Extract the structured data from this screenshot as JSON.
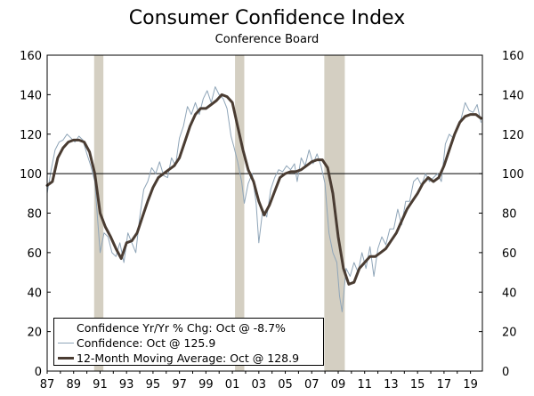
{
  "chart_data": {
    "type": "line",
    "title": "Consumer Confidence Index",
    "subtitle": "Conference Board",
    "ylim": [
      0,
      160
    ],
    "yticks": [
      0,
      20,
      40,
      60,
      80,
      100,
      120,
      140,
      160
    ],
    "xlim": [
      1987,
      2019.9
    ],
    "xtick_values": [
      1987,
      1989,
      1991,
      1993,
      1995,
      1997,
      1999,
      2001,
      2003,
      2005,
      2007,
      2009,
      2011,
      2013,
      2015,
      2017,
      2019
    ],
    "xtick_labels": [
      "87",
      "89",
      "91",
      "93",
      "95",
      "97",
      "99",
      "01",
      "03",
      "05",
      "07",
      "09",
      "11",
      "13",
      "15",
      "17",
      "19"
    ],
    "reference_line": 100,
    "recessions": [
      [
        1990.55,
        1991.25
      ],
      [
        2001.2,
        2001.9
      ],
      [
        2007.95,
        2009.5
      ]
    ],
    "legend": [
      "Confidence Yr/Yr % Chg: Oct @ -8.7%",
      "Confidence: Oct @ 125.9",
      "12-Month Moving Average: Oct @ 128.9"
    ],
    "series": [
      {
        "name": "Confidence",
        "color": "#8fa5b8",
        "x": [
          1987.0,
          1987.3,
          1987.6,
          1987.9,
          1988.2,
          1988.5,
          1988.8,
          1989.1,
          1989.4,
          1989.7,
          1990.0,
          1990.3,
          1990.6,
          1990.8,
          1991.0,
          1991.3,
          1991.6,
          1991.9,
          1992.2,
          1992.5,
          1992.8,
          1993.1,
          1993.4,
          1993.7,
          1994.0,
          1994.3,
          1994.6,
          1994.9,
          1995.2,
          1995.5,
          1995.8,
          1996.1,
          1996.4,
          1996.7,
          1997.0,
          1997.3,
          1997.6,
          1997.9,
          1998.2,
          1998.5,
          1998.8,
          1999.1,
          1999.4,
          1999.7,
          2000.0,
          2000.3,
          2000.6,
          2000.9,
          2001.1,
          2001.4,
          2001.7,
          2001.9,
          2002.2,
          2002.5,
          2002.8,
          2003.0,
          2003.3,
          2003.6,
          2003.9,
          2004.2,
          2004.5,
          2004.8,
          2005.1,
          2005.4,
          2005.7,
          2005.9,
          2006.2,
          2006.5,
          2006.8,
          2007.1,
          2007.4,
          2007.7,
          2008.0,
          2008.3,
          2008.6,
          2008.9,
          2009.1,
          2009.3,
          2009.6,
          2009.9,
          2010.2,
          2010.5,
          2010.8,
          2011.1,
          2011.4,
          2011.7,
          2012.0,
          2012.3,
          2012.6,
          2012.9,
          2013.2,
          2013.5,
          2013.8,
          2014.1,
          2014.4,
          2014.7,
          2015.0,
          2015.3,
          2015.6,
          2015.9,
          2016.2,
          2016.5,
          2016.8,
          2017.1,
          2017.4,
          2017.7,
          2018.0,
          2018.3,
          2018.6,
          2018.9,
          2019.2,
          2019.5,
          2019.8
        ],
        "values": [
          90,
          102,
          112,
          116,
          117,
          120,
          118,
          116,
          119,
          117,
          110,
          104,
          96,
          78,
          60,
          70,
          68,
          60,
          58,
          65,
          55,
          70,
          65,
          60,
          78,
          92,
          96,
          103,
          100,
          106,
          99,
          98,
          108,
          104,
          118,
          124,
          134,
          130,
          136,
          130,
          138,
          142,
          136,
          144,
          140,
          138,
          133,
          119,
          114,
          106,
          96,
          85,
          95,
          100,
          85,
          65,
          82,
          78,
          92,
          98,
          102,
          101,
          104,
          102,
          105,
          96,
          108,
          104,
          112,
          105,
          110,
          104,
          95,
          70,
          60,
          55,
          38,
          30,
          52,
          48,
          55,
          50,
          60,
          52,
          63,
          48,
          62,
          68,
          64,
          72,
          72,
          82,
          74,
          86,
          86,
          96,
          98,
          94,
          100,
          96,
          98,
          100,
          96,
          115,
          120,
          118,
          124,
          128,
          136,
          132,
          131,
          135,
          126
        ]
      },
      {
        "name": "12-Month Moving Average",
        "color": "#4a3c32",
        "x": [
          1987.0,
          1987.4,
          1987.8,
          1988.2,
          1988.6,
          1989.0,
          1989.4,
          1989.8,
          1990.2,
          1990.6,
          1991.0,
          1991.4,
          1991.8,
          1992.2,
          1992.6,
          1993.0,
          1993.4,
          1993.8,
          1994.2,
          1994.6,
          1995.0,
          1995.4,
          1995.8,
          1996.2,
          1996.6,
          1997.0,
          1997.4,
          1997.8,
          1998.2,
          1998.6,
          1999.0,
          1999.4,
          1999.8,
          2000.2,
          2000.6,
          2001.0,
          2001.4,
          2001.8,
          2002.2,
          2002.6,
          2003.0,
          2003.4,
          2003.8,
          2004.2,
          2004.6,
          2005.0,
          2005.4,
          2005.8,
          2006.2,
          2006.6,
          2007.0,
          2007.4,
          2007.8,
          2008.2,
          2008.6,
          2009.0,
          2009.4,
          2009.8,
          2010.2,
          2010.6,
          2011.0,
          2011.4,
          2011.8,
          2012.2,
          2012.6,
          2013.0,
          2013.4,
          2013.8,
          2014.2,
          2014.6,
          2015.0,
          2015.4,
          2015.8,
          2016.2,
          2016.6,
          2017.0,
          2017.4,
          2017.8,
          2018.2,
          2018.6,
          2019.0,
          2019.4,
          2019.8
        ],
        "values": [
          94,
          96,
          108,
          113,
          116,
          117,
          117,
          116,
          111,
          100,
          80,
          73,
          68,
          62,
          57,
          65,
          66,
          70,
          78,
          86,
          93,
          98,
          100,
          102,
          104,
          108,
          116,
          124,
          130,
          133,
          133,
          135,
          137,
          140,
          139,
          136,
          124,
          112,
          102,
          96,
          86,
          79,
          84,
          91,
          98,
          100,
          101,
          101,
          102,
          104,
          106,
          107,
          107,
          103,
          90,
          68,
          52,
          44,
          45,
          52,
          55,
          58,
          58,
          60,
          62,
          66,
          70,
          76,
          82,
          86,
          90,
          95,
          98,
          96,
          98,
          104,
          112,
          120,
          126,
          129,
          130,
          130,
          128
        ]
      }
    ]
  }
}
